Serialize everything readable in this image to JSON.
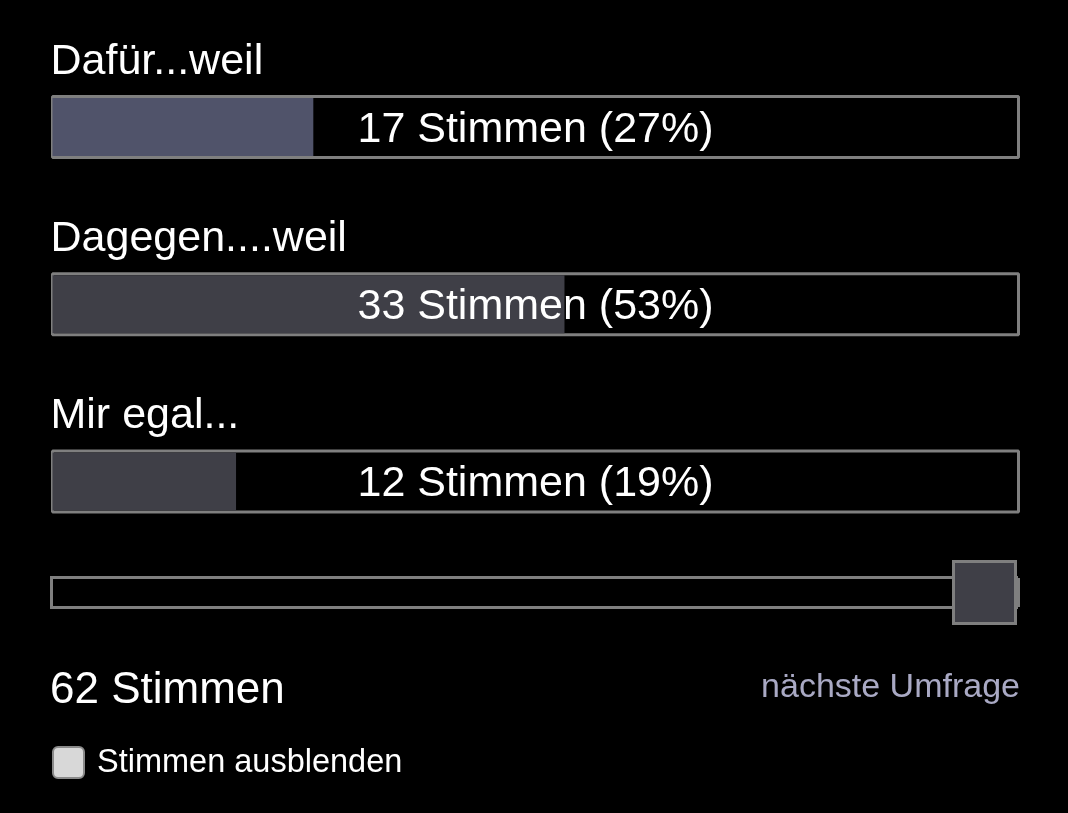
{
  "chart_data": {
    "type": "bar",
    "orientation": "horizontal",
    "categories": [
      "Dafür...weil",
      "Dagegen....weil",
      "Mir egal..."
    ],
    "values": [
      27,
      53,
      19
    ],
    "colors": [
      "#50536a",
      "#3f3f47",
      "#3f3f47"
    ],
    "xlim": [
      0,
      100
    ],
    "value_labels": [
      "17 Stimmen (27%)",
      "33 Stimmen (53%)",
      "12 Stimmen (19%)"
    ],
    "annotations": [
      "62 Stimmen",
      "nächste Umfrage",
      "Stimmen ausblenden"
    ],
    "tick_labels": false
  }
}
